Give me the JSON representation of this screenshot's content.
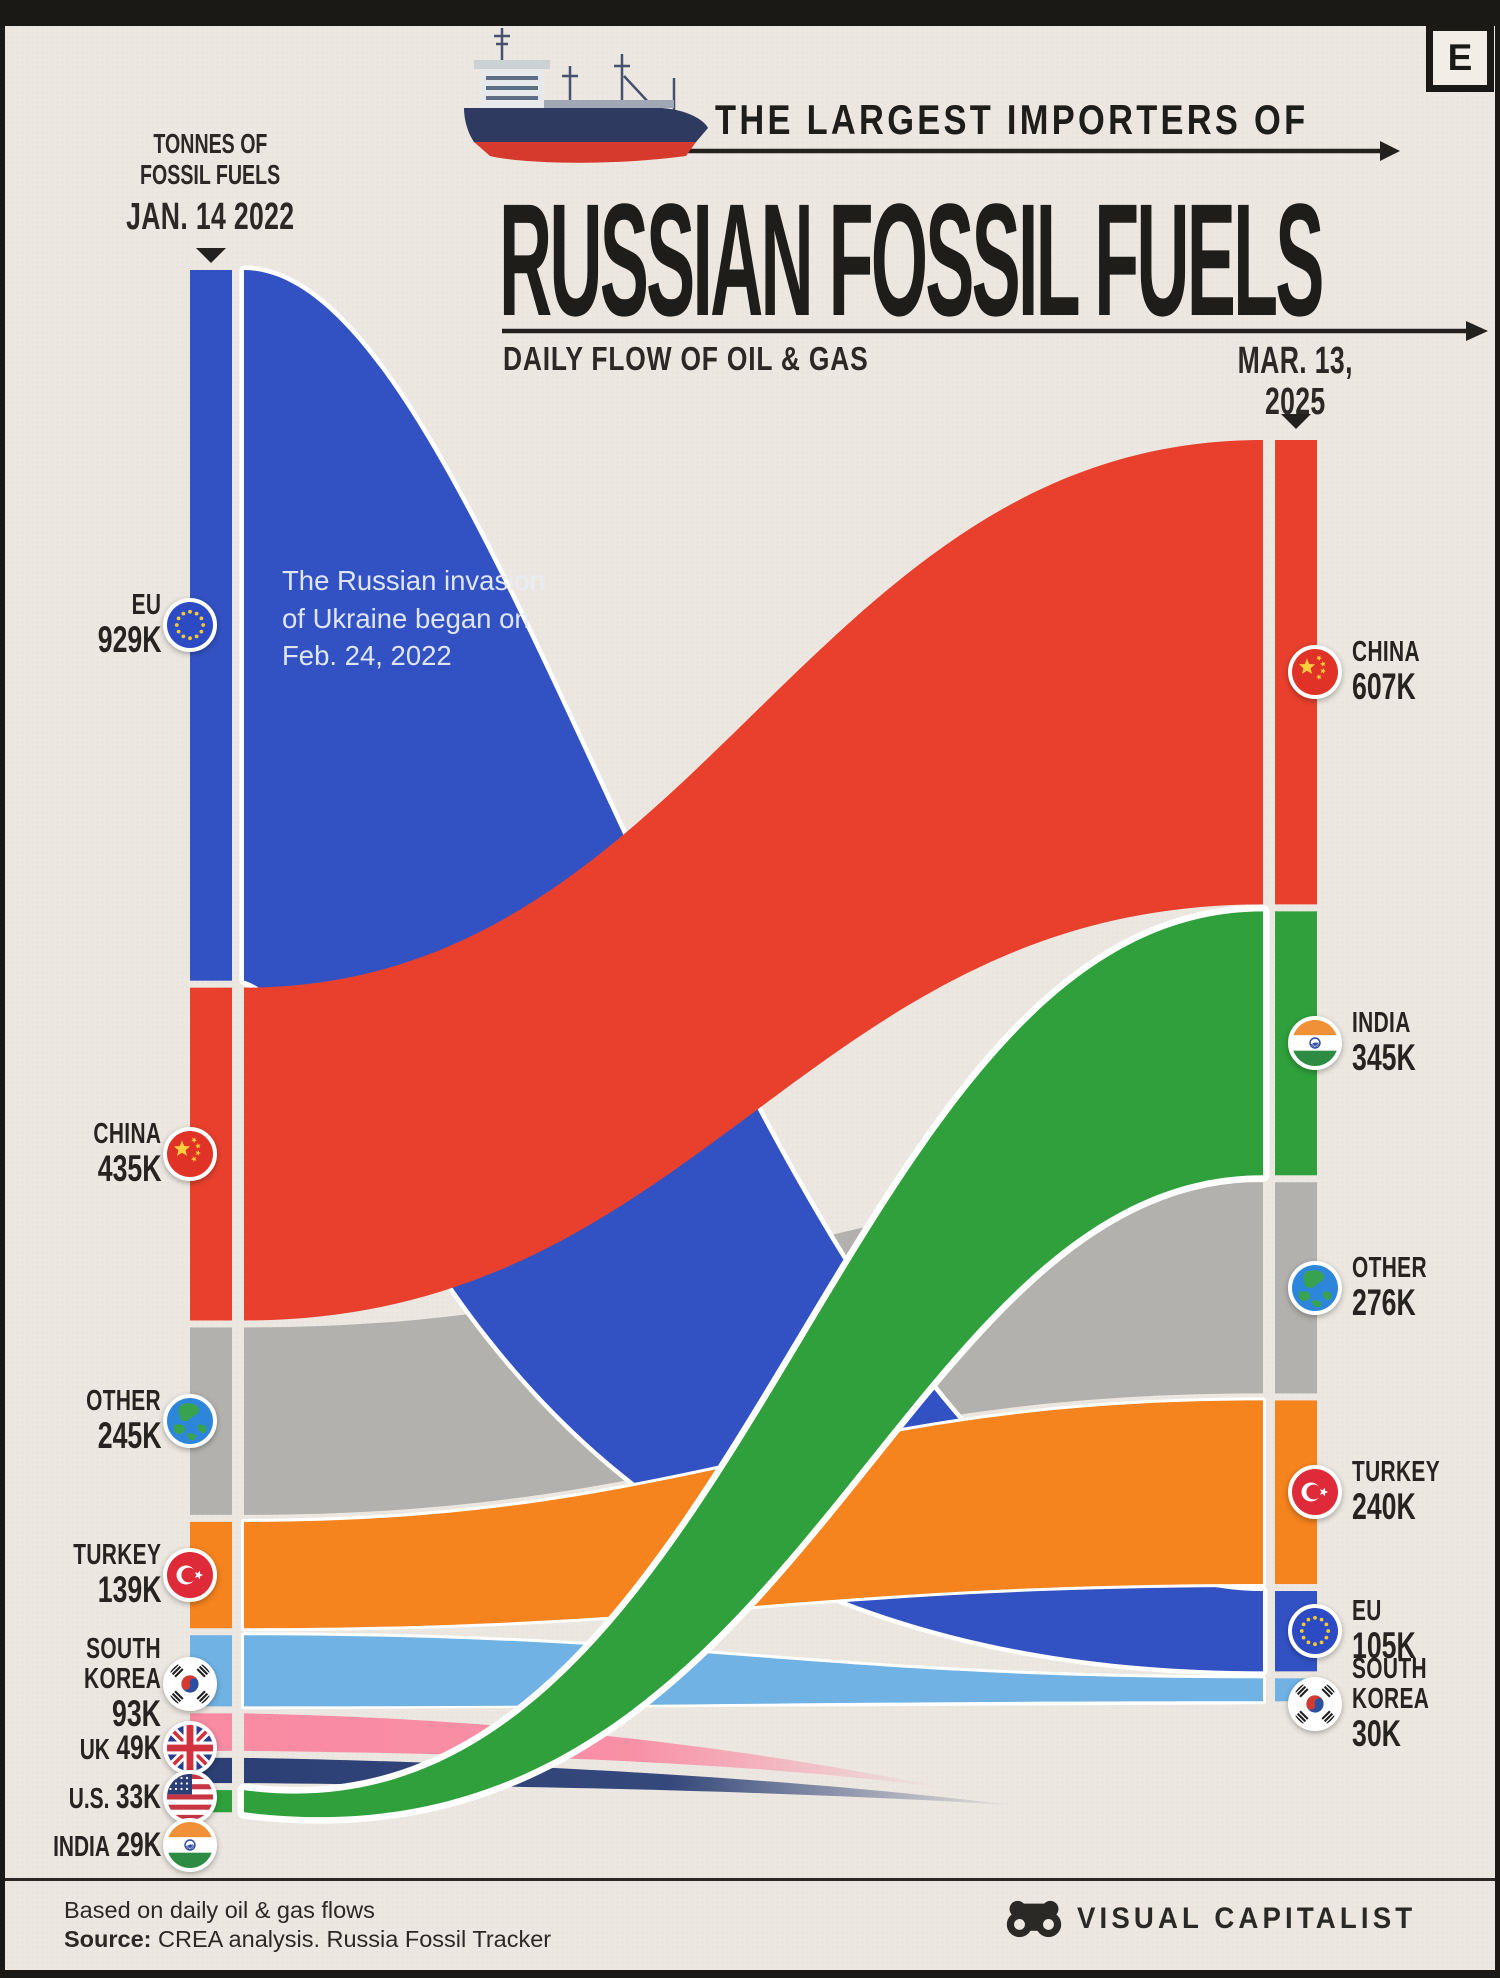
{
  "frame": {
    "logo_letter": "E"
  },
  "header": {
    "kicker": "THE LARGEST IMPORTERS OF",
    "title": "RUSSIAN FOSSIL FUELS",
    "subtitle": "DAILY FLOW OF OIL & GAS",
    "left_axis": {
      "line1": "TONNES OF",
      "line2": "FOSSIL FUELS",
      "date": "JAN. 14 2022"
    },
    "right_axis": {
      "line1": "MAR. 13,",
      "line2": "2025"
    }
  },
  "annotation": {
    "lines": [
      "The Russian invasion",
      "of Ukraine began on",
      "Feb. 24, 2022"
    ]
  },
  "chart_data": {
    "type": "alluvial",
    "title": "The Largest Importers of Russian Fossil Fuels",
    "subtitle": "Daily flow of oil & gas",
    "unit": "tonnes of fossil fuels per day (K = thousand)",
    "left_date": "Jan. 14 2022",
    "right_date": "Mar. 13, 2025",
    "left_order": [
      "EU",
      "CHINA",
      "OTHER",
      "TURKEY",
      "SOUTH KOREA",
      "UK",
      "U.S.",
      "INDIA"
    ],
    "right_order": [
      "CHINA",
      "INDIA",
      "OTHER",
      "TURKEY",
      "EU",
      "SOUTH KOREA"
    ],
    "flows": [
      {
        "name": "EU",
        "flag": "eu",
        "color": "#3252C3",
        "left_value": 929,
        "right_value": 105,
        "left_label": "929K",
        "right_label": "105K"
      },
      {
        "name": "CHINA",
        "flag": "china",
        "color": "#E8402D",
        "left_value": 435,
        "right_value": 607,
        "left_label": "435K",
        "right_label": "607K"
      },
      {
        "name": "OTHER",
        "flag": "globe",
        "color": "#B3B1AE",
        "left_value": 245,
        "right_value": 276,
        "left_label": "245K",
        "right_label": "276K"
      },
      {
        "name": "TURKEY",
        "flag": "turkey",
        "color": "#F5831E",
        "left_value": 139,
        "right_value": 240,
        "left_label": "139K",
        "right_label": "240K"
      },
      {
        "name": "SOUTH KOREA",
        "flag": "kr",
        "color": "#70B2E3",
        "left_value": 93,
        "right_value": 30,
        "left_label": "93K",
        "right_label": "30K"
      },
      {
        "name": "UK",
        "flag": "uk",
        "color": "#F98BA3",
        "left_value": 49,
        "right_value": 0,
        "left_label": "49K",
        "right_label": ""
      },
      {
        "name": "U.S.",
        "flag": "us",
        "color": "#2C4076",
        "left_value": 33,
        "right_value": 0,
        "left_label": "33K",
        "right_label": ""
      },
      {
        "name": "INDIA",
        "flag": "india",
        "color": "#2FA03C",
        "left_value": 29,
        "right_value": 345,
        "left_label": "29K",
        "right_label": "345K"
      }
    ]
  },
  "footer": {
    "note": "Based on daily oil & gas flows",
    "source_label": "Source:",
    "source_text": " CREA analysis. Russia Fossil Tracker",
    "brand": "VISUAL CAPITALIST"
  }
}
